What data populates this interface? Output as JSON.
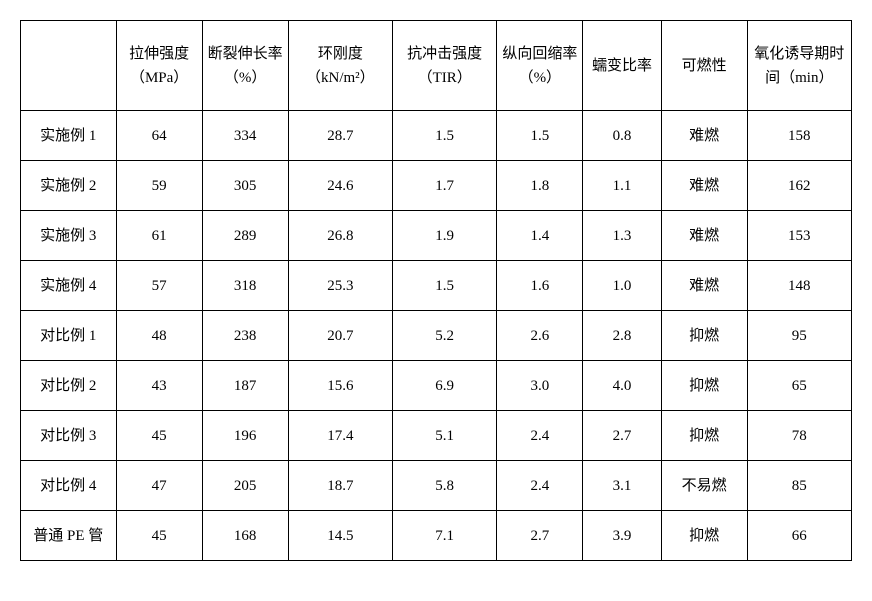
{
  "table": {
    "type": "table",
    "columns": [
      "",
      "拉伸强度（MPa）",
      "断裂伸长率（%）",
      "环刚度（kN/m²）",
      "抗冲击强度（TIR）",
      "纵向回缩率（%）",
      "蠕变比率",
      "可燃性",
      "氧化诱导期时间（min）"
    ],
    "column_widths": [
      "11%",
      "9.9%",
      "9.9%",
      "12%",
      "12%",
      "9.9%",
      "9%",
      "9.9%",
      "12%"
    ],
    "rows": [
      {
        "label": "实施例 1",
        "v": [
          "64",
          "334",
          "28.7",
          "1.5",
          "1.5",
          "0.8",
          "难燃",
          "158"
        ]
      },
      {
        "label": "实施例 2",
        "v": [
          "59",
          "305",
          "24.6",
          "1.7",
          "1.8",
          "1.1",
          "难燃",
          "162"
        ]
      },
      {
        "label": "实施例 3",
        "v": [
          "61",
          "289",
          "26.8",
          "1.9",
          "1.4",
          "1.3",
          "难燃",
          "153"
        ]
      },
      {
        "label": "实施例 4",
        "v": [
          "57",
          "318",
          "25.3",
          "1.5",
          "1.6",
          "1.0",
          "难燃",
          "148"
        ]
      },
      {
        "label": "对比例 1",
        "v": [
          "48",
          "238",
          "20.7",
          "5.2",
          "2.6",
          "2.8",
          "抑燃",
          "95"
        ]
      },
      {
        "label": "对比例 2",
        "v": [
          "43",
          "187",
          "15.6",
          "6.9",
          "3.0",
          "4.0",
          "抑燃",
          "65"
        ]
      },
      {
        "label": "对比例 3",
        "v": [
          "45",
          "196",
          "17.4",
          "5.1",
          "2.4",
          "2.7",
          "抑燃",
          "78"
        ]
      },
      {
        "label": "对比例 4",
        "v": [
          "47",
          "205",
          "18.7",
          "5.8",
          "2.4",
          "3.1",
          "不易燃",
          "85"
        ]
      },
      {
        "label": "普通 PE 管",
        "v": [
          "45",
          "168",
          "14.5",
          "7.1",
          "2.7",
          "3.9",
          "抑燃",
          "66"
        ]
      }
    ],
    "header_fontsize": 15,
    "cell_fontsize": 15,
    "border_color": "#000000",
    "background_color": "#ffffff",
    "text_color": "#000000"
  }
}
